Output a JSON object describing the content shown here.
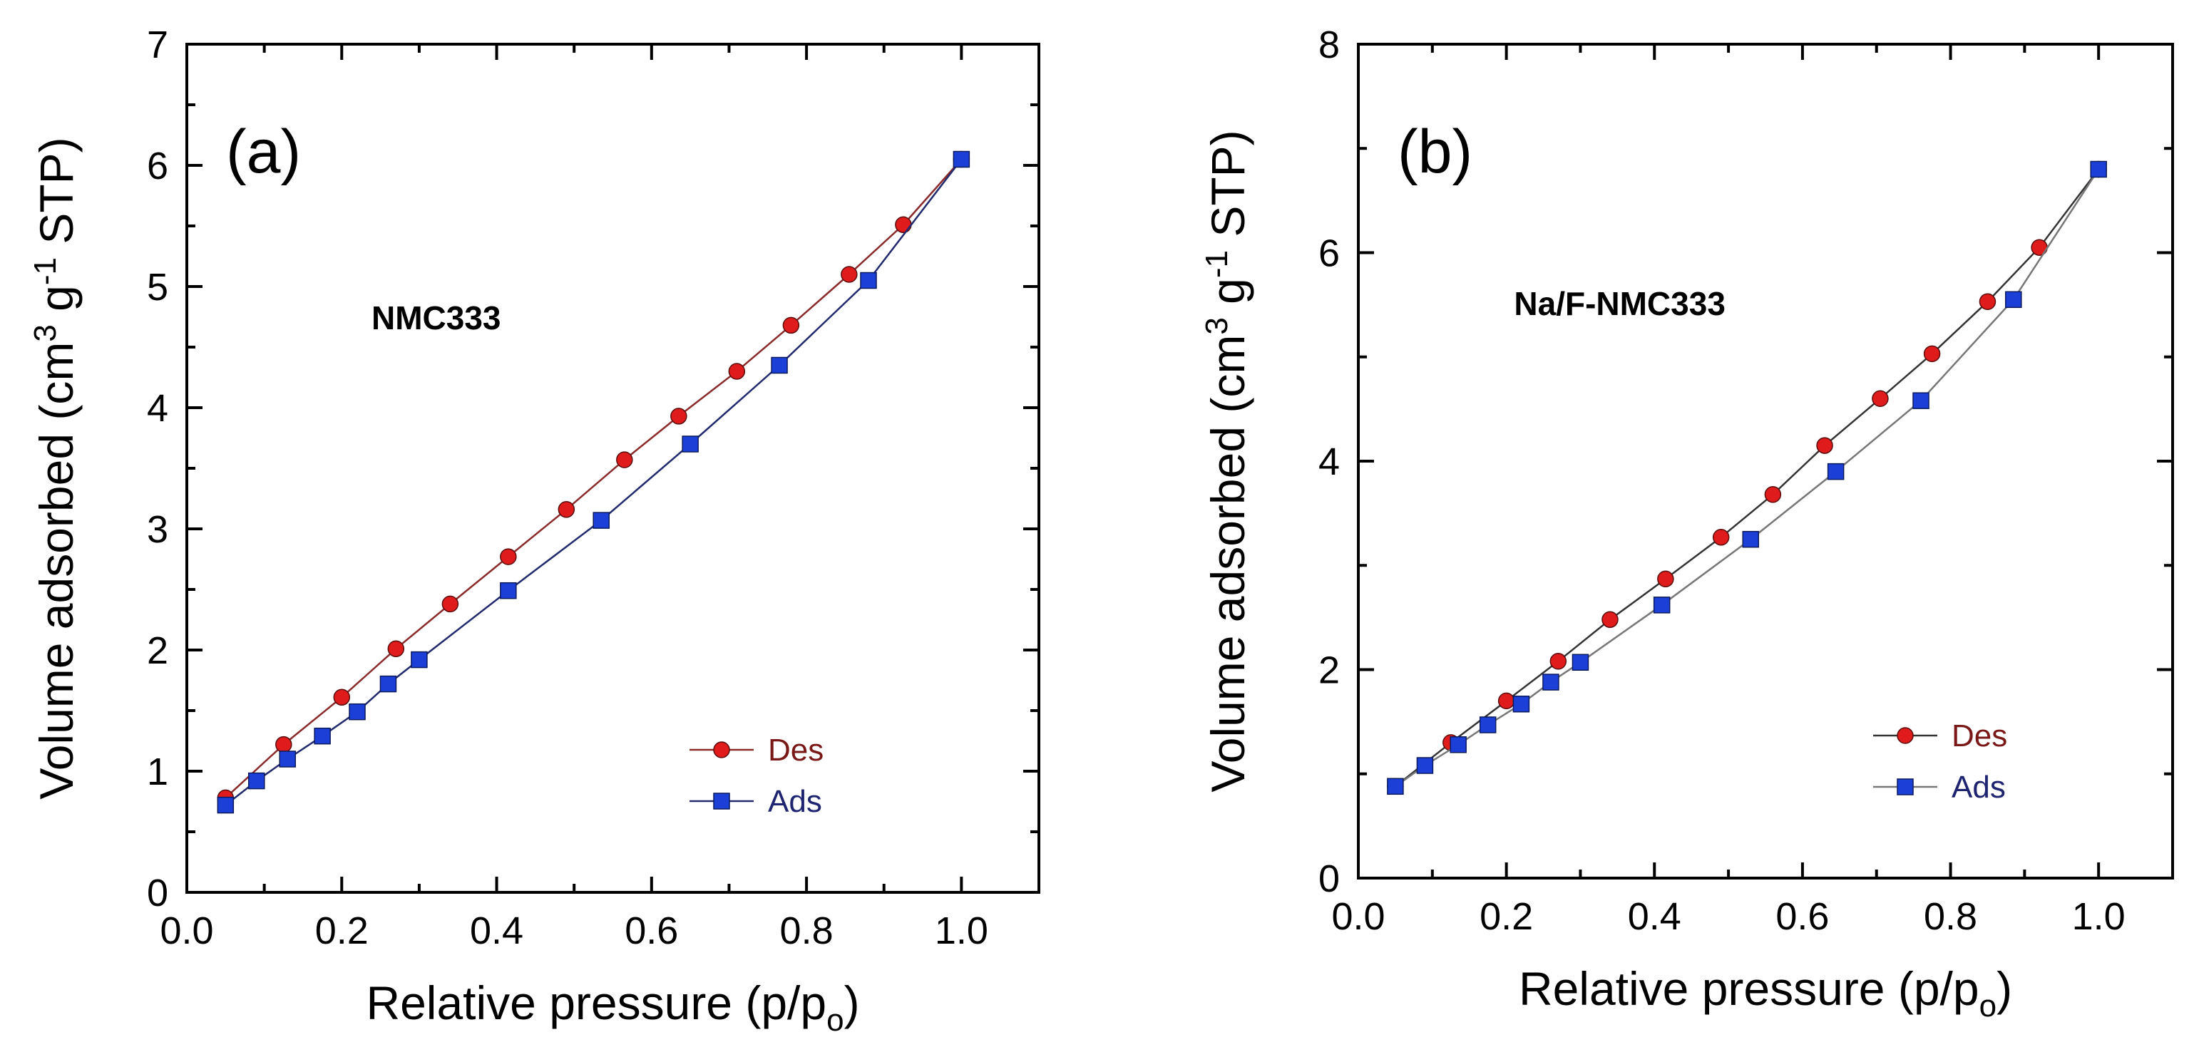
{
  "chart_data": [
    {
      "type": "line",
      "panel_label": "(a)",
      "annotation": "NMC333",
      "xlabel": "Relative pressure (p/p",
      "xlabel_sub": "o",
      "xlabel_end": ")",
      "ylabel": "Volume adsorbed (cm",
      "ylabel_sup1": "3",
      "ylabel_mid": " g",
      "ylabel_sup2": "-1",
      "ylabel_end": " STP)",
      "xlim": [
        0.0,
        1.1
      ],
      "ylim": [
        0,
        7
      ],
      "xticks": [
        0.0,
        0.2,
        0.4,
        0.6,
        0.8,
        1.0
      ],
      "xtick_labels": [
        "0.0",
        "0.2",
        "0.4",
        "0.6",
        "0.8",
        "1.0"
      ],
      "yticks": [
        0,
        1,
        2,
        3,
        4,
        5,
        6,
        7
      ],
      "ytick_labels": [
        "0",
        "1",
        "2",
        "3",
        "4",
        "5",
        "6",
        "7"
      ],
      "legend_position": "bottom-right",
      "series": [
        {
          "name": "Des",
          "marker": "circle",
          "color": "#e01b1b",
          "line_color": "#8b2a2a",
          "x": [
            0.05,
            0.125,
            0.2,
            0.27,
            0.34,
            0.415,
            0.49,
            0.565,
            0.635,
            0.71,
            0.78,
            0.855,
            0.925,
            1.0
          ],
          "y": [
            0.78,
            1.22,
            1.61,
            2.01,
            2.38,
            2.77,
            3.16,
            3.57,
            3.93,
            4.3,
            4.68,
            5.1,
            5.51,
            6.05
          ]
        },
        {
          "name": "Ads",
          "marker": "square",
          "color": "#1c3fd8",
          "line_color": "#222a6e",
          "x": [
            0.05,
            0.09,
            0.13,
            0.175,
            0.22,
            0.26,
            0.3,
            0.415,
            0.535,
            0.65,
            0.765,
            0.88,
            1.0
          ],
          "y": [
            0.72,
            0.92,
            1.1,
            1.29,
            1.49,
            1.72,
            1.92,
            2.49,
            3.07,
            3.7,
            4.35,
            5.05,
            6.05
          ]
        }
      ]
    },
    {
      "type": "line",
      "panel_label": "(b)",
      "annotation": "Na/F-NMC333",
      "xlabel": "Relative pressure (p/p",
      "xlabel_sub": "o",
      "xlabel_end": ")",
      "ylabel": "Volume adsorbed (cm",
      "ylabel_sup1": "3",
      "ylabel_mid": " g",
      "ylabel_sup2": "-1",
      "ylabel_end": " STP)",
      "xlim": [
        0.0,
        1.1
      ],
      "ylim": [
        0,
        8
      ],
      "xticks": [
        0.0,
        0.2,
        0.4,
        0.6,
        0.8,
        1.0
      ],
      "xtick_labels": [
        "0.0",
        "0.2",
        "0.4",
        "0.6",
        "0.8",
        "1.0"
      ],
      "yticks": [
        0,
        2,
        4,
        6,
        8
      ],
      "ytick_labels": [
        "0",
        "2",
        "4",
        "6",
        "8"
      ],
      "legend_position": "bottom-right",
      "series": [
        {
          "name": "Des",
          "marker": "circle",
          "color": "#e01b1b",
          "line_color": "#333333",
          "x": [
            0.05,
            0.125,
            0.2,
            0.27,
            0.34,
            0.415,
            0.49,
            0.56,
            0.63,
            0.705,
            0.775,
            0.85,
            0.92,
            1.0
          ],
          "y": [
            0.88,
            1.3,
            1.7,
            2.08,
            2.48,
            2.87,
            3.27,
            3.68,
            4.15,
            4.6,
            5.03,
            5.53,
            6.05,
            6.8
          ]
        },
        {
          "name": "Ads",
          "marker": "square",
          "color": "#1c3fd8",
          "line_color": "#777777",
          "x": [
            0.05,
            0.09,
            0.135,
            0.175,
            0.22,
            0.26,
            0.3,
            0.41,
            0.53,
            0.645,
            0.76,
            0.885,
            1.0
          ],
          "y": [
            0.88,
            1.08,
            1.28,
            1.47,
            1.67,
            1.88,
            2.07,
            2.62,
            3.25,
            3.9,
            4.58,
            5.55,
            6.8
          ]
        }
      ]
    }
  ]
}
